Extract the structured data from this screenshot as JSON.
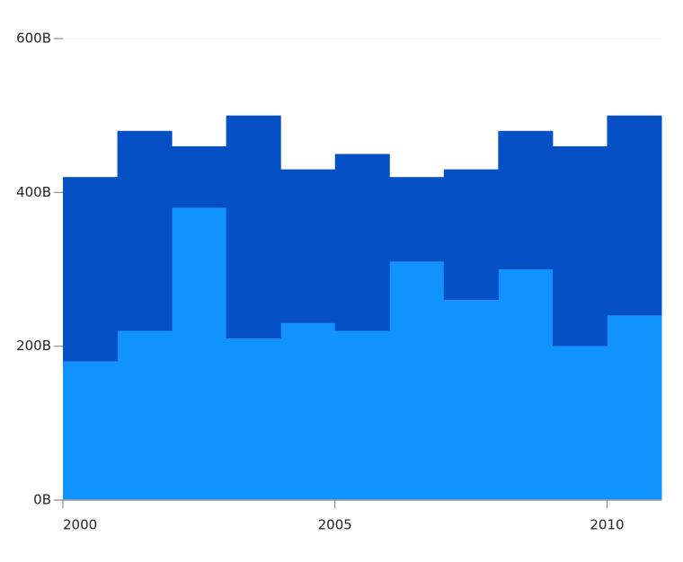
{
  "chart_data": {
    "type": "stepped-area-stacked",
    "x": [
      2000,
      2001,
      2002,
      2003,
      2004,
      2005,
      2006,
      2007,
      2008,
      2009,
      2010
    ],
    "series": [
      {
        "color": "#1193ff",
        "values": [
          180,
          220,
          380,
          210,
          230,
          220,
          310,
          260,
          300,
          200,
          240
        ]
      },
      {
        "color": "#0550c4",
        "values": [
          240,
          260,
          80,
          290,
          200,
          230,
          110,
          170,
          180,
          260,
          260
        ]
      }
    ],
    "xlim": [
      2000,
      2011
    ],
    "xticks": [
      2000,
      2005,
      2010
    ],
    "ylim": [
      0,
      600
    ],
    "yticks": [
      {
        "value": 0,
        "label": "0B"
      },
      {
        "value": 200,
        "label": "200B"
      },
      {
        "value": 400,
        "label": "400B"
      },
      {
        "value": 600,
        "label": "600B"
      }
    ],
    "grid": true
  }
}
